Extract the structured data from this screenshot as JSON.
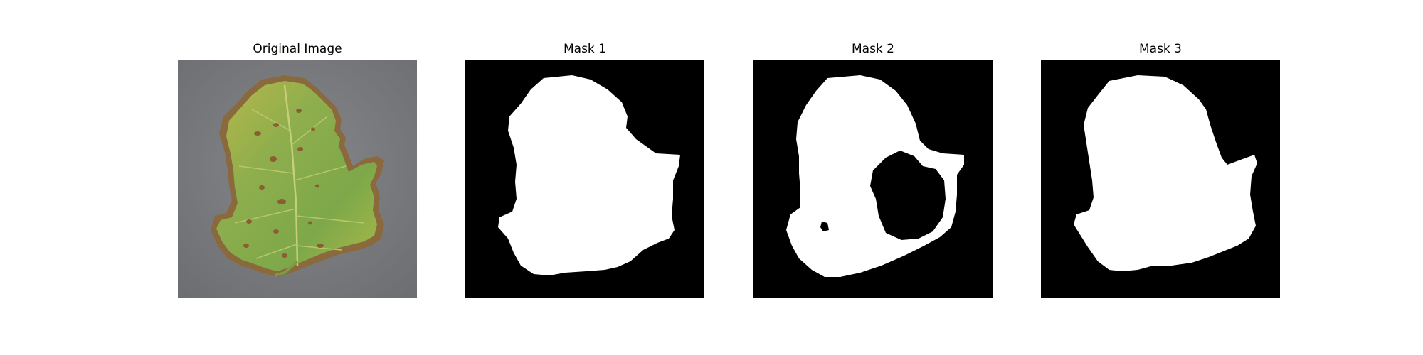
{
  "figure": {
    "panels": [
      {
        "title": "Original Image",
        "kind": "photo",
        "subject": "leaf-photo"
      },
      {
        "title": "Mask 1",
        "kind": "binary-mask"
      },
      {
        "title": "Mask 2",
        "kind": "binary-mask"
      },
      {
        "title": "Mask 3",
        "kind": "binary-mask"
      }
    ]
  },
  "colors": {
    "background": "#ffffff",
    "mask_background": "#000000",
    "mask_foreground": "#ffffff",
    "photo_backdrop": "#7b7d7f",
    "leaf_green": "#86aa4c",
    "leaf_yellow": "#c9c24c",
    "leaf_brown": "#8a6a3d"
  }
}
